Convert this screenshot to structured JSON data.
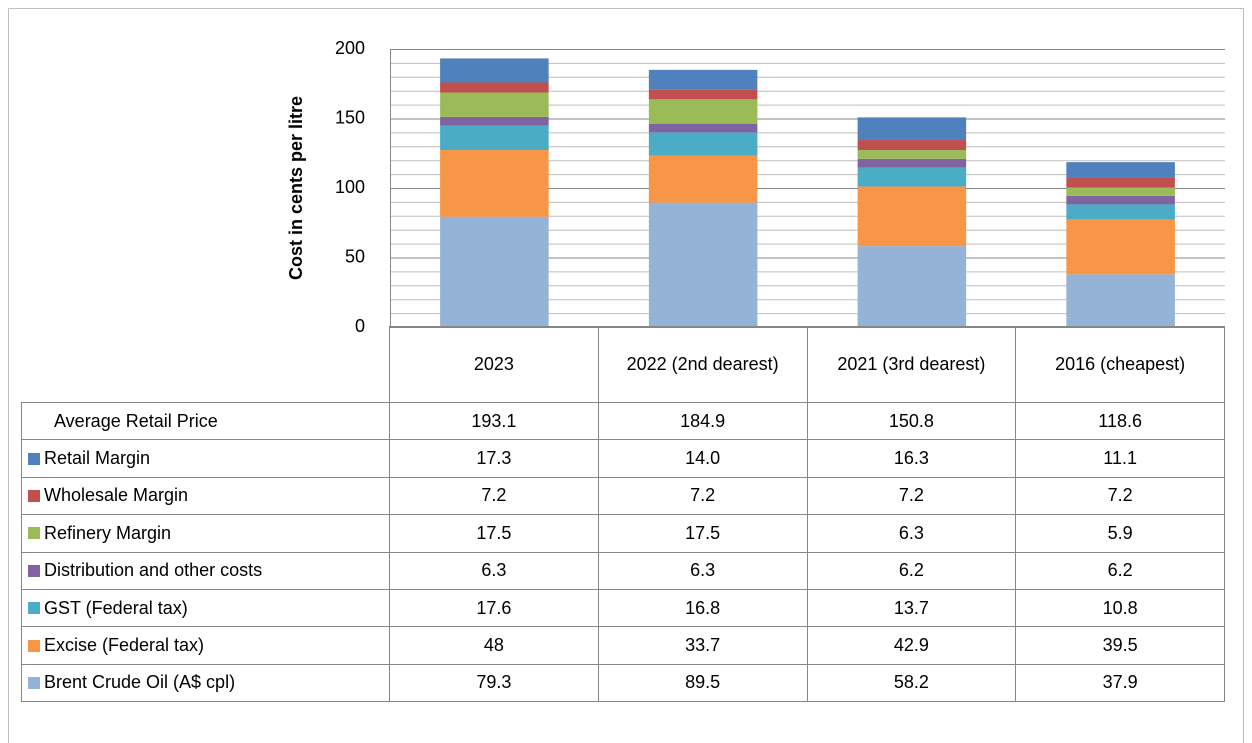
{
  "chart_data": {
    "type": "stacked_bar",
    "y_axis_title": "Cost in cents per litre",
    "categories": [
      "2023",
      "2022 (2nd dearest)",
      "2021 (3rd dearest)",
      "2016 (cheapest)"
    ],
    "ylim": [
      0,
      200
    ],
    "yticks": [
      0,
      50,
      100,
      150,
      200
    ],
    "grid": true,
    "minor_grid_step": 10,
    "total": {
      "name": "Average Retail Price",
      "values": [
        193.1,
        184.9,
        150.8,
        118.6
      ]
    },
    "series": [
      {
        "name": "Retail Margin",
        "color": "#4f81bd",
        "values": [
          17.3,
          14.0,
          16.3,
          11.1
        ],
        "value_labels": [
          "17.3",
          "14.0",
          "16.3",
          "11.1"
        ]
      },
      {
        "name": "Wholesale Margin",
        "color": "#c0504d",
        "values": [
          7.2,
          7.2,
          7.2,
          7.2
        ]
      },
      {
        "name": "Refinery Margin",
        "color": "#9bbb59",
        "values": [
          17.5,
          17.5,
          6.3,
          5.9
        ]
      },
      {
        "name": "Distribution and other costs",
        "color": "#8064a2",
        "values": [
          6.3,
          6.3,
          6.2,
          6.2
        ]
      },
      {
        "name": "GST (Federal tax)",
        "color": "#4bacc6",
        "values": [
          17.6,
          16.8,
          13.7,
          10.8
        ]
      },
      {
        "name": "Excise (Federal tax)",
        "color": "#f79646",
        "values": [
          48,
          33.7,
          42.9,
          39.5
        ]
      },
      {
        "name": "Brent Crude Oil (A$ cpl)",
        "color": "#95b3d7",
        "values": [
          79.3,
          89.5,
          58.2,
          37.9
        ]
      }
    ]
  }
}
